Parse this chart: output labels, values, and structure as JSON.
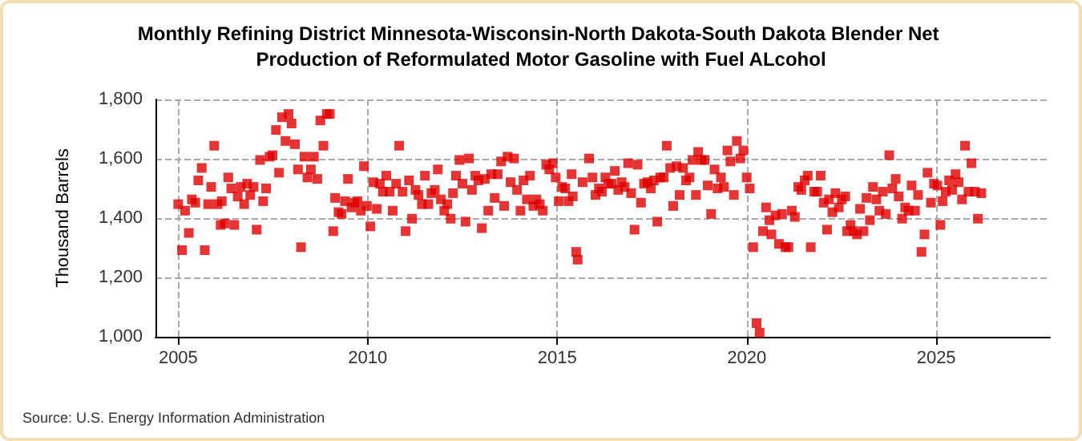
{
  "chart_data": {
    "type": "scatter",
    "title": "Monthly Refining District Minnesota-Wisconsin-North Dakota-South Dakota Blender Net Production of Reformulated Motor Gasoline with Fuel ALcohol",
    "ylabel": "Thousand Barrels",
    "annotations": [
      "Source: U.S. Energy Information Administration"
    ],
    "marker": "square",
    "grid": true,
    "xlim": [
      2004.4,
      2028
    ],
    "xticks": [
      2005,
      2010,
      2015,
      2020,
      2025
    ],
    "ylim": [
      1000,
      1800
    ],
    "yticks": [
      {
        "value": 1000,
        "label": "1,000"
      },
      {
        "value": 1200,
        "label": "1,200"
      },
      {
        "value": 1400,
        "label": "1,400"
      },
      {
        "value": 1600,
        "label": "1,600"
      },
      {
        "value": 1800,
        "label": "1,800"
      }
    ],
    "series": [
      {
        "color": "#e00000",
        "x": [
          2005.0,
          2005.1,
          2005.18,
          2005.28,
          2005.36,
          2005.45,
          2005.53,
          2005.62,
          2005.7,
          2005.79,
          2005.87,
          2005.95,
          2006.04,
          2006.12,
          2006.15,
          2006.23,
          2006.32,
          2006.4,
          2006.48,
          2006.57,
          2006.65,
          2006.74,
          2006.82,
          2006.9,
          2006.99,
          2007.07,
          2007.16,
          2007.24,
          2007.32,
          2007.41,
          2007.49,
          2007.58,
          2007.66,
          2007.74,
          2007.83,
          2007.91,
          2007.99,
          2008.08,
          2008.16,
          2008.24,
          2008.33,
          2008.41,
          2008.5,
          2008.58,
          2008.67,
          2008.75,
          2008.83,
          2008.92,
          2009.0,
          2009.09,
          2009.14,
          2009.23,
          2009.31,
          2009.4,
          2009.48,
          2009.57,
          2009.65,
          2009.73,
          2009.82,
          2009.9,
          2009.98,
          2010.07,
          2010.15,
          2010.24,
          2010.32,
          2010.4,
          2010.49,
          2010.58,
          2010.66,
          2010.75,
          2010.83,
          2010.92,
          2011.0,
          2011.09,
          2011.17,
          2011.26,
          2011.34,
          2011.43,
          2011.51,
          2011.6,
          2011.68,
          2011.77,
          2011.85,
          2011.93,
          2012.02,
          2012.1,
          2012.19,
          2012.25,
          2012.33,
          2012.42,
          2012.5,
          2012.58,
          2012.67,
          2012.75,
          2012.84,
          2012.92,
          2013.01,
          2013.09,
          2013.18,
          2013.26,
          2013.35,
          2013.43,
          2013.52,
          2013.6,
          2013.69,
          2013.77,
          2013.86,
          2013.94,
          2014.03,
          2014.11,
          2014.2,
          2014.28,
          2014.37,
          2014.45,
          2014.54,
          2014.62,
          2014.71,
          2014.79,
          2014.88,
          2014.96,
          2015.04,
          2015.13,
          2015.21,
          2015.3,
          2015.38,
          2015.41,
          2015.5,
          2015.54,
          2015.67,
          2015.84,
          2015.93,
          2016.01,
          2016.1,
          2016.18,
          2016.27,
          2016.35,
          2016.44,
          2016.52,
          2016.61,
          2016.7,
          2016.78,
          2016.87,
          2016.95,
          2017.04,
          2017.12,
          2017.21,
          2017.29,
          2017.38,
          2017.47,
          2017.55,
          2017.64,
          2017.72,
          2017.81,
          2017.89,
          2017.98,
          2018.06,
          2018.15,
          2018.23,
          2018.32,
          2018.4,
          2018.49,
          2018.57,
          2018.66,
          2018.72,
          2018.81,
          2018.89,
          2018.97,
          2019.06,
          2019.15,
          2019.23,
          2019.32,
          2019.4,
          2019.49,
          2019.57,
          2019.66,
          2019.74,
          2019.83,
          2019.91,
          2020.0,
          2020.08,
          2020.17,
          2020.26,
          2020.34,
          2020.43,
          2020.51,
          2020.6,
          2020.65,
          2020.76,
          2020.85,
          2020.93,
          2021.02,
          2021.1,
          2021.19,
          2021.27,
          2021.36,
          2021.44,
          2021.53,
          2021.61,
          2021.69,
          2021.78,
          2021.86,
          2021.95,
          2022.03,
          2022.12,
          2022.17,
          2022.26,
          2022.34,
          2022.43,
          2022.51,
          2022.6,
          2022.65,
          2022.74,
          2022.82,
          2022.91,
          2022.99,
          2023.08,
          2023.16,
          2023.25,
          2023.33,
          2023.42,
          2023.5,
          2023.59,
          2023.67,
          2023.76,
          2023.84,
          2023.93,
          2024.01,
          2024.1,
          2024.18,
          2024.27,
          2024.35,
          2024.44,
          2024.52,
          2024.61,
          2024.69,
          2024.77,
          2024.86,
          2024.94,
          2025.03,
          2025.11,
          2025.17,
          2025.25,
          2025.34,
          2025.42,
          2025.51,
          2025.59,
          2025.68,
          2025.76,
          2025.85,
          2025.93,
          2026.02,
          2026.1,
          2026.19
        ],
        "values": [
          1447,
          1292,
          1425,
          1350,
          1463,
          1452,
          1527,
          1569,
          1292,
          1447,
          1505,
          1644,
          1447,
          1377,
          1457,
          1382,
          1537,
          1500,
          1377,
          1473,
          1505,
          1447,
          1516,
          1478,
          1505,
          1361,
          1596,
          1457,
          1500,
          1607,
          1612,
          1697,
          1553,
          1740,
          1660,
          1751,
          1719,
          1649,
          1564,
          1302,
          1607,
          1537,
          1564,
          1607,
          1532,
          1729,
          1644,
          1751,
          1751,
          1356,
          1468,
          1420,
          1414,
          1457,
          1532,
          1436,
          1452,
          1457,
          1425,
          1575,
          1441,
          1372,
          1521,
          1431,
          1516,
          1489,
          1543,
          1489,
          1425,
          1516,
          1644,
          1489,
          1356,
          1527,
          1398,
          1495,
          1478,
          1447,
          1543,
          1447,
          1484,
          1495,
          1564,
          1463,
          1425,
          1447,
          1398,
          1484,
          1543,
          1596,
          1516,
          1388,
          1601,
          1495,
          1543,
          1527,
          1366,
          1532,
          1425,
          1548,
          1468,
          1548,
          1591,
          1441,
          1607,
          1521,
          1601,
          1495,
          1425,
          1527,
          1463,
          1543,
          1441,
          1463,
          1447,
          1425,
          1580,
          1564,
          1585,
          1537,
          1457,
          1505,
          1500,
          1457,
          1548,
          1473,
          1286,
          1260,
          1521,
          1601,
          1537,
          1478,
          1500,
          1489,
          1537,
          1516,
          1516,
          1559,
          1495,
          1521,
          1505,
          1585,
          1484,
          1361,
          1580,
          1452,
          1516,
          1521,
          1500,
          1527,
          1388,
          1537,
          1537,
          1644,
          1569,
          1441,
          1575,
          1478,
          1569,
          1527,
          1537,
          1596,
          1478,
          1623,
          1596,
          1596,
          1510,
          1414,
          1564,
          1500,
          1537,
          1505,
          1628,
          1591,
          1478,
          1660,
          1601,
          1628,
          1537,
          1500,
          1302,
          1046,
          1014,
          1356,
          1436,
          1393,
          1345,
          1409,
          1313,
          1414,
          1302,
          1302,
          1425,
          1404,
          1505,
          1495,
          1527,
          1543,
          1302,
          1489,
          1489,
          1543,
          1452,
          1361,
          1463,
          1420,
          1484,
          1436,
          1463,
          1473,
          1356,
          1377,
          1356,
          1345,
          1431,
          1356,
          1468,
          1393,
          1505,
          1463,
          1425,
          1489,
          1414,
          1612,
          1500,
          1532,
          1473,
          1398,
          1436,
          1425,
          1510,
          1425,
          1478,
          1286,
          1345,
          1553,
          1452,
          1516,
          1510,
          1377,
          1457,
          1489,
          1527,
          1495,
          1548,
          1521,
          1463,
          1644,
          1489,
          1585,
          1489,
          1398,
          1484
        ]
      }
    ]
  }
}
